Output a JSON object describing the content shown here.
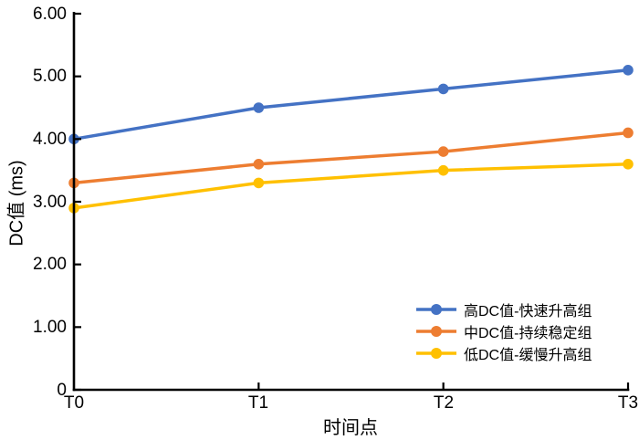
{
  "chart_data": {
    "type": "line",
    "title": "",
    "xlabel": "时间点",
    "ylabel": "DC值 (ms)",
    "categories": [
      "T0",
      "T1",
      "T2",
      "T3"
    ],
    "series": [
      {
        "name": "高DC值-快速升高组",
        "color": "#4472C4",
        "values": [
          4.0,
          4.5,
          4.8,
          5.1
        ]
      },
      {
        "name": "中DC值-持续稳定组",
        "color": "#ED7D31",
        "values": [
          3.3,
          3.6,
          3.8,
          4.1
        ]
      },
      {
        "name": "低DC值-缓慢升高组",
        "color": "#FFC000",
        "values": [
          2.9,
          3.3,
          3.5,
          3.6
        ]
      }
    ],
    "ylim": [
      0,
      6
    ],
    "ytick_labels": [
      "6.00",
      "5.00",
      "4.00",
      "3.00",
      "2.00",
      "1.00",
      "0"
    ],
    "grid": false,
    "legend_position": "inside-bottom-right",
    "axis_color": "#000000",
    "marker_style": "filled-circle"
  }
}
